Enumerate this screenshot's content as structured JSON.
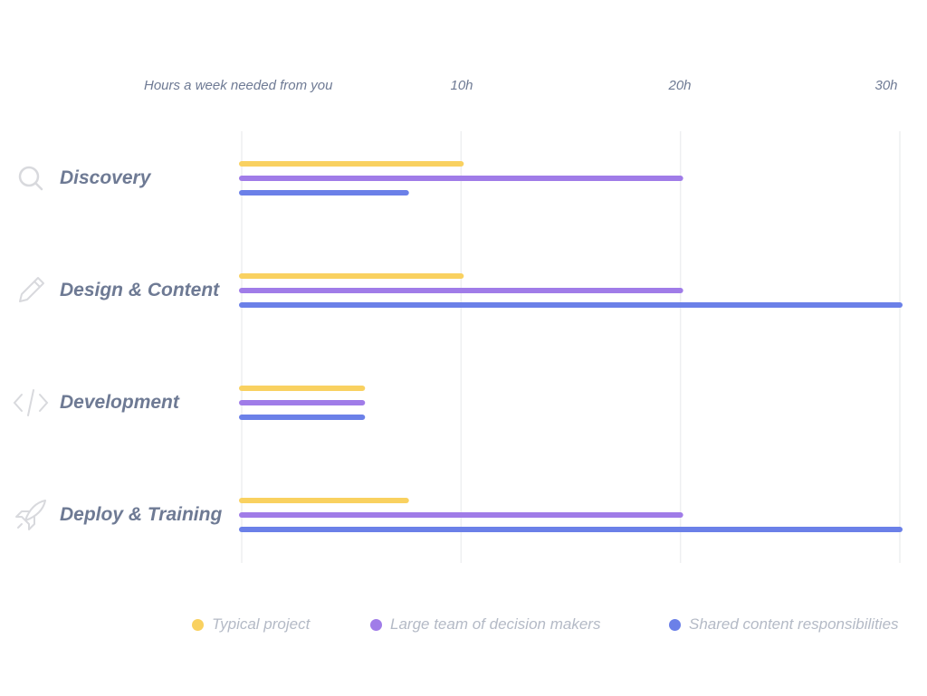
{
  "chart_data": {
    "type": "bar",
    "orientation": "horizontal",
    "xlabel": "Hours a week needed from you",
    "xlim": [
      0,
      30
    ],
    "xticks": [
      {
        "value": 10,
        "label": "10h"
      },
      {
        "value": 20,
        "label": "20h"
      },
      {
        "value": 30,
        "label": "30h"
      }
    ],
    "grid": true,
    "legend_position": "bottom",
    "categories": [
      {
        "label": "Discovery",
        "icon": "search-icon"
      },
      {
        "label": "Design & Content",
        "icon": "pencil-icon"
      },
      {
        "label": "Development",
        "icon": "code-icon"
      },
      {
        "label": "Deploy & Training",
        "icon": "rocket-icon"
      }
    ],
    "series": [
      {
        "name": "Typical project",
        "color": "#f9d160",
        "values": [
          10,
          10,
          5.5,
          7.5
        ]
      },
      {
        "name": "Large team of decision makers",
        "color": "#a07ce8",
        "values": [
          20,
          20,
          5.5,
          20
        ]
      },
      {
        "name": "Shared content responsibilities",
        "color": "#6b80e8",
        "values": [
          7.5,
          30,
          5.5,
          30
        ]
      }
    ]
  }
}
